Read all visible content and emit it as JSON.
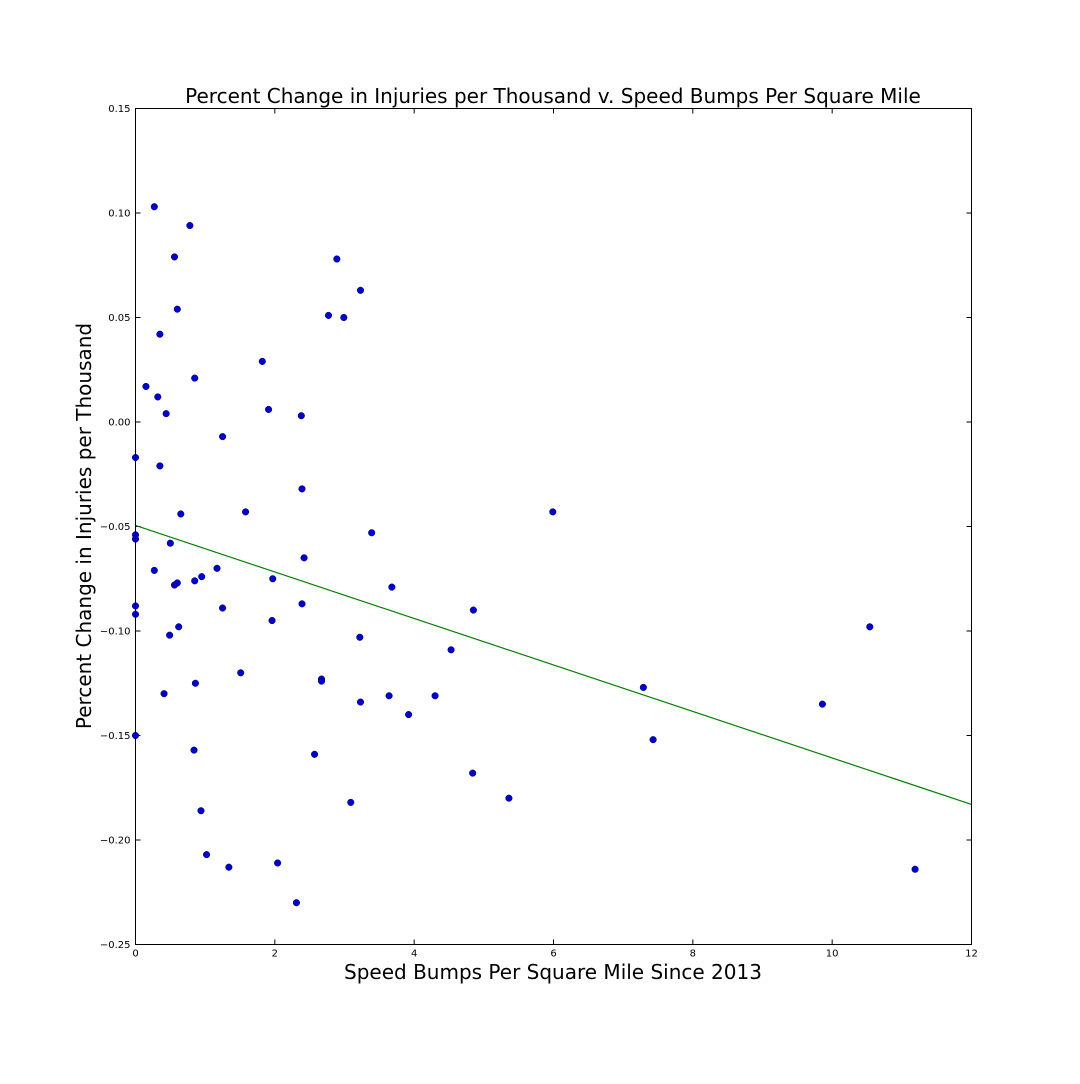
{
  "chart_data": {
    "type": "scatter",
    "title": "Percent Change in Injuries per Thousand v. Speed Bumps Per Square Mile",
    "xlabel": "Speed Bumps Per Square Mile Since 2013",
    "ylabel": "Percent Change in Injuries per Thousand",
    "xlim": [
      0,
      12
    ],
    "ylim": [
      -0.25,
      0.15
    ],
    "x_ticks": [
      0,
      2,
      4,
      6,
      8,
      10,
      12
    ],
    "x_tick_labels": [
      "0",
      "2",
      "4",
      "6",
      "8",
      "10",
      "12"
    ],
    "y_ticks": [
      0.15,
      0.1,
      0.05,
      0.0,
      -0.05,
      -0.1,
      -0.15,
      -0.2,
      -0.25
    ],
    "y_tick_labels": [
      "0.15",
      "0.10",
      "0.05",
      "0.00",
      "−0.05",
      "−0.10",
      "−0.15",
      "−0.20",
      "−0.25"
    ],
    "grid": false,
    "series": [
      {
        "kind": "points",
        "color": "#0000cc",
        "points": [
          [
            0.27,
            0.103
          ],
          [
            0.78,
            0.094
          ],
          [
            0.56,
            0.079
          ],
          [
            0.6,
            0.054
          ],
          [
            0.35,
            0.042
          ],
          [
            0.85,
            0.021
          ],
          [
            0.15,
            0.017
          ],
          [
            0.32,
            0.012
          ],
          [
            0.44,
            0.004
          ],
          [
            1.25,
            -0.007
          ],
          [
            0.0,
            -0.017
          ],
          [
            0.35,
            -0.021
          ],
          [
            0.65,
            -0.044
          ],
          [
            0.0,
            -0.054
          ],
          [
            0.0,
            -0.056
          ],
          [
            0.5,
            -0.058
          ],
          [
            0.27,
            -0.071
          ],
          [
            0.95,
            -0.074
          ],
          [
            0.6,
            -0.077
          ],
          [
            0.56,
            -0.078
          ],
          [
            0.85,
            -0.076
          ],
          [
            1.17,
            -0.07
          ],
          [
            0.0,
            -0.088
          ],
          [
            0.0,
            -0.092
          ],
          [
            1.25,
            -0.089
          ],
          [
            0.62,
            -0.098
          ],
          [
            0.49,
            -0.102
          ],
          [
            0.41,
            -0.13
          ],
          [
            0.86,
            -0.125
          ],
          [
            0.0,
            -0.15
          ],
          [
            0.84,
            -0.157
          ],
          [
            0.94,
            -0.186
          ],
          [
            1.02,
            -0.207
          ],
          [
            1.34,
            -0.213
          ],
          [
            1.82,
            0.029
          ],
          [
            1.91,
            0.006
          ],
          [
            2.38,
            0.003
          ],
          [
            2.39,
            -0.032
          ],
          [
            1.58,
            -0.043
          ],
          [
            2.42,
            -0.065
          ],
          [
            1.97,
            -0.075
          ],
          [
            2.39,
            -0.087
          ],
          [
            1.96,
            -0.095
          ],
          [
            1.51,
            -0.12
          ],
          [
            2.67,
            -0.123
          ],
          [
            2.67,
            -0.124
          ],
          [
            2.57,
            -0.159
          ],
          [
            2.04,
            -0.211
          ],
          [
            2.31,
            -0.23
          ],
          [
            2.89,
            0.078
          ],
          [
            3.23,
            0.063
          ],
          [
            2.77,
            0.051
          ],
          [
            2.99,
            0.05
          ],
          [
            3.39,
            -0.053
          ],
          [
            3.68,
            -0.079
          ],
          [
            3.22,
            -0.103
          ],
          [
            3.23,
            -0.134
          ],
          [
            3.64,
            -0.131
          ],
          [
            3.92,
            -0.14
          ],
          [
            3.09,
            -0.182
          ],
          [
            4.85,
            -0.09
          ],
          [
            4.53,
            -0.109
          ],
          [
            4.3,
            -0.131
          ],
          [
            4.84,
            -0.168
          ],
          [
            5.36,
            -0.18
          ],
          [
            5.99,
            -0.043
          ],
          [
            7.29,
            -0.127
          ],
          [
            7.43,
            -0.152
          ],
          [
            9.86,
            -0.135
          ],
          [
            10.54,
            -0.098
          ],
          [
            11.19,
            -0.214
          ]
        ]
      },
      {
        "kind": "line",
        "color": "#008000",
        "points": [
          [
            0,
            -0.0495
          ],
          [
            12,
            -0.183
          ]
        ]
      }
    ]
  }
}
